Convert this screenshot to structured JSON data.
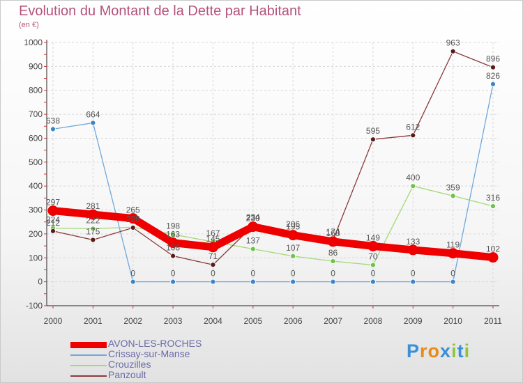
{
  "header": {
    "title": "Evolution du Montant de la Dette par Habitant",
    "subtitle": "(en €)"
  },
  "logo": {
    "text": "Proxiti",
    "colors": [
      "#3a8fd8",
      "#e8891c",
      "#e8891c",
      "#3a8fd8",
      "#8cc63f",
      "#3a8fd8",
      "#8cc63f"
    ]
  },
  "chart_data": {
    "type": "line",
    "title": "Evolution du Montant de la Dette par Habitant",
    "subtitle": "(en €)",
    "xlabel": "",
    "ylabel": "",
    "categories": [
      "2000",
      "2001",
      "2002",
      "2003",
      "2004",
      "2005",
      "2006",
      "2007",
      "2008",
      "2009",
      "2010",
      "2011"
    ],
    "ylim": [
      -100,
      1000
    ],
    "yticks": [
      "-100",
      "0",
      "100",
      "200",
      "300",
      "400",
      "500",
      "600",
      "700",
      "800",
      "900",
      "1000"
    ],
    "grid": true,
    "legend_position": "bottom-left",
    "series": [
      {
        "name": "AVON-LES-ROCHES",
        "color": "#ee0000",
        "width": "thick",
        "values": [
          297,
          281,
          265,
          163,
          145,
          230,
          195,
          168,
          149,
          133,
          119,
          102
        ]
      },
      {
        "name": "Crissay-sur-Manse",
        "color": "#6fa8dc",
        "marker": "#3d85c6",
        "width": "thin",
        "values": [
          638,
          664,
          0,
          0,
          0,
          0,
          0,
          0,
          0,
          0,
          0,
          826
        ]
      },
      {
        "name": "Crouzilles",
        "color": "#a3d977",
        "marker": "#6cc24a",
        "width": "thin",
        "values": [
          224,
          222,
          228,
          198,
          167,
          137,
          107,
          86,
          70,
          400,
          359,
          316
        ]
      },
      {
        "name": "Panzoult",
        "color": "#8b3a3a",
        "marker": "#5a1a1a",
        "width": "thin",
        "values": [
          212,
          175,
          226,
          108,
          71,
          234,
          206,
          174,
          595,
          612,
          963,
          896
        ]
      }
    ]
  }
}
